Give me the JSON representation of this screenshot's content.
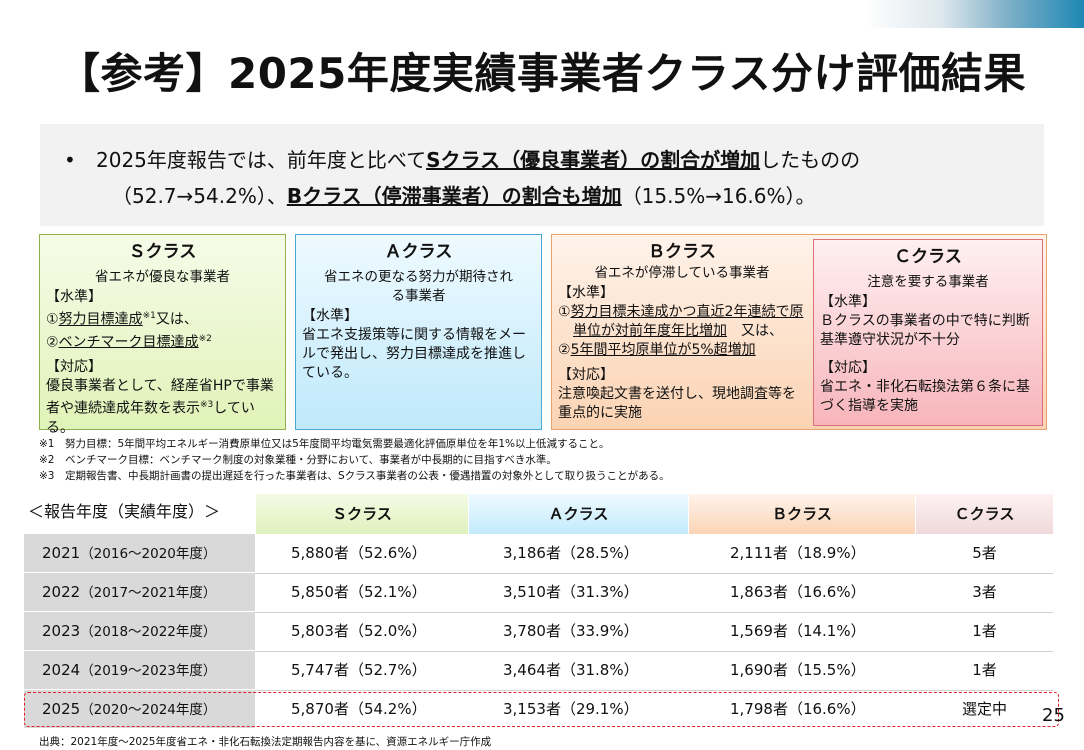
{
  "title": "【参考】2025年度実績事業者クラス分け評価結果",
  "summary": {
    "bullet": "•",
    "p1": "2025年度報告では、前年度と比べて",
    "p1_em": "Sクラス（優良事業者）の割合が増加",
    "p1_end": "したものの",
    "p2": "（52.7→54.2%）、",
    "p2_em": "Bクラス（停滞事業者）の割合も増加",
    "p2_end": "（15.5%→16.6%）。"
  },
  "cards": {
    "s": {
      "title": "Ｓクラス",
      "subtitle": "省エネが優良な事業者",
      "level_head": "【水準】",
      "l1_pre": "①",
      "l1_u": "努力目標達成",
      "l1_sup": "※1",
      "l1_post": "又は、",
      "l2_pre": "②",
      "l2_u": "ベンチマーク目標達成",
      "l2_sup": "※2",
      "resp_head": "【対応】",
      "resp_pre": "優良事業者として、経産省HPで事業者や連続達成年数を表示",
      "resp_sup": "※3",
      "resp_post": "している。"
    },
    "a": {
      "title": "Ａクラス",
      "subtitle": "省エネの更なる努力が期待される事業者",
      "level_head": "【水準】",
      "body": "省エネ支援策等に関する情報をメールで発出し、努力目標達成を推進している。"
    },
    "b": {
      "title": "Ｂクラス",
      "subtitle": "省エネが停滞している事業者",
      "level_head": "【水準】",
      "l1_pre": "①",
      "l1_u": "努力目標未達成かつ直近2年連続で原単位が対前年度年比増加",
      "l1_post": "　又は、",
      "l2_pre": "②",
      "l2_u": "5年間平均原単位が5%超増加",
      "resp_head": "【対応】",
      "resp": "注意喚起文書を送付し、現地調査等を重点的に実施"
    },
    "c": {
      "title": "Ｃクラス",
      "subtitle": "注意を要する事業者",
      "level_head": "【水準】",
      "level": "Ｂクラスの事業者の中で特に判断基準遵守状況が不十分",
      "resp_head": "【対応】",
      "resp": "省エネ・非化石転換法第６条に基づく指導を実施"
    }
  },
  "notes": [
    "※1　努力目標：5年間平均エネルギー消費原単位又は5年度間平均電気需要最適化評価原単位を年1%以上低減すること。",
    "※2　ベンチマーク目標：ベンチマーク制度の対象業種・分野において、事業者が中長期的に目指すべき水準。",
    "※3　定期報告書、中長期計画書の提出遅延を行った事業者は、Sクラス事業者の公表・優遇措置の対象外として取り扱うことがある。"
  ],
  "table": {
    "label": "＜報告年度（実績年度）＞",
    "headers": [
      "Ｓクラス",
      "Ａクラス",
      "Ｂクラス",
      "Ｃクラス"
    ],
    "rows": [
      {
        "year": "2021",
        "range": "（2016～2020年度）",
        "s": "5,880者（52.6%）",
        "a": "3,186者（28.5%）",
        "b": "2,111者（18.9%）",
        "c": "5者"
      },
      {
        "year": "2022",
        "range": "（2017～2021年度）",
        "s": "5,850者（52.1%）",
        "a": "3,510者（31.3%）",
        "b": "1,863者（16.6%）",
        "c": "3者"
      },
      {
        "year": "2023",
        "range": "（2018～2022年度）",
        "s": "5,803者（52.0%）",
        "a": "3,780者（33.9%）",
        "b": "1,569者（14.1%）",
        "c": "1者"
      },
      {
        "year": "2024",
        "range": "（2019～2023年度）",
        "s": "5,747者（52.7%）",
        "a": "3,464者（31.8%）",
        "b": "1,690者（15.5%）",
        "c": "1者"
      },
      {
        "year": "2025",
        "range": "（2020～2024年度）",
        "s": "5,870者（54.2%）",
        "a": "3,153者（29.1%）",
        "b": "1,798者（16.6%）",
        "c": "選定中"
      }
    ]
  },
  "page_number": "25",
  "source": "出典：2021年度～2025年度省エネ・非化石転換法定期報告内容を基に、資源エネルギー庁作成"
}
